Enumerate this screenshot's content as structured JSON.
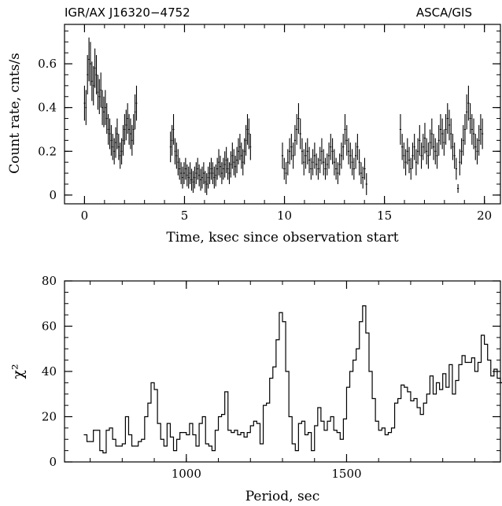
{
  "header": {
    "left": "IGR/AX J16320−4752",
    "right": "ASCA/GIS"
  },
  "chart_data": [
    {
      "type": "scatter",
      "xlabel": "Time, ksec since observation start",
      "ylabel": "Count rate, cnts/s",
      "xlim": [
        -1.0,
        20.8
      ],
      "ylim": [
        -0.04,
        0.78
      ],
      "x_ticks": [
        0,
        5,
        10,
        15,
        20
      ],
      "y_ticks": [
        0,
        0.2,
        0.4,
        0.6
      ],
      "x_tick_labels": [
        "0",
        "5",
        "10",
        "15",
        "20"
      ],
      "y_tick_labels": [
        "0",
        "0.2",
        "0.4",
        "0.6"
      ],
      "segments": [
        {
          "start": 0.0,
          "end": 2.6,
          "values": [
            0.42,
            0.4,
            0.55,
            0.62,
            0.6,
            0.52,
            0.5,
            0.58,
            0.55,
            0.47,
            0.45,
            0.48,
            0.4,
            0.38,
            0.4,
            0.35,
            0.3,
            0.28,
            0.25,
            0.22,
            0.2,
            0.24,
            0.28,
            0.22,
            0.18,
            0.2,
            0.25,
            0.3,
            0.32,
            0.35,
            0.3,
            0.28,
            0.25,
            0.3,
            0.38,
            0.42
          ],
          "errors": [
            0.08,
            0.08,
            0.09,
            0.1,
            0.1,
            0.09,
            0.09,
            0.09,
            0.09,
            0.08,
            0.08,
            0.08,
            0.08,
            0.07,
            0.08,
            0.07,
            0.07,
            0.07,
            0.07,
            0.06,
            0.06,
            0.07,
            0.07,
            0.06,
            0.06,
            0.06,
            0.07,
            0.07,
            0.07,
            0.07,
            0.07,
            0.07,
            0.07,
            0.07,
            0.08,
            0.08
          ]
        },
        {
          "start": 4.3,
          "end": 8.3,
          "values": [
            0.22,
            0.25,
            0.3,
            0.2,
            0.18,
            0.15,
            0.12,
            0.1,
            0.08,
            0.1,
            0.12,
            0.09,
            0.08,
            0.1,
            0.07,
            0.06,
            0.08,
            0.1,
            0.12,
            0.09,
            0.07,
            0.08,
            0.1,
            0.06,
            0.05,
            0.08,
            0.1,
            0.12,
            0.1,
            0.08,
            0.09,
            0.12,
            0.15,
            0.13,
            0.1,
            0.12,
            0.14,
            0.16,
            0.12,
            0.1,
            0.14,
            0.18,
            0.15,
            0.13,
            0.16,
            0.2,
            0.22,
            0.18,
            0.15,
            0.2,
            0.25,
            0.3,
            0.28,
            0.22
          ],
          "errors": [
            0.07,
            0.07,
            0.07,
            0.06,
            0.06,
            0.06,
            0.05,
            0.05,
            0.05,
            0.05,
            0.05,
            0.05,
            0.05,
            0.05,
            0.05,
            0.05,
            0.05,
            0.05,
            0.05,
            0.05,
            0.05,
            0.05,
            0.05,
            0.05,
            0.05,
            0.05,
            0.05,
            0.05,
            0.05,
            0.05,
            0.05,
            0.05,
            0.06,
            0.05,
            0.05,
            0.05,
            0.06,
            0.06,
            0.05,
            0.05,
            0.06,
            0.06,
            0.06,
            0.05,
            0.06,
            0.06,
            0.06,
            0.06,
            0.06,
            0.06,
            0.07,
            0.07,
            0.07,
            0.06
          ]
        },
        {
          "start": 9.9,
          "end": 14.1,
          "values": [
            0.18,
            0.12,
            0.1,
            0.15,
            0.2,
            0.22,
            0.18,
            0.25,
            0.3,
            0.35,
            0.28,
            0.2,
            0.15,
            0.18,
            0.2,
            0.16,
            0.12,
            0.15,
            0.18,
            0.14,
            0.12,
            0.16,
            0.2,
            0.15,
            0.12,
            0.14,
            0.18,
            0.22,
            0.2,
            0.15,
            0.12,
            0.1,
            0.14,
            0.18,
            0.22,
            0.3,
            0.25,
            0.2,
            0.18,
            0.15,
            0.12,
            0.18,
            0.22,
            0.15,
            0.1,
            0.08,
            0.12,
            0.05
          ],
          "errors": [
            0.06,
            0.05,
            0.05,
            0.06,
            0.06,
            0.06,
            0.06,
            0.07,
            0.07,
            0.07,
            0.07,
            0.06,
            0.06,
            0.06,
            0.06,
            0.06,
            0.05,
            0.06,
            0.06,
            0.05,
            0.05,
            0.06,
            0.06,
            0.06,
            0.05,
            0.05,
            0.06,
            0.06,
            0.06,
            0.06,
            0.05,
            0.05,
            0.05,
            0.06,
            0.06,
            0.07,
            0.07,
            0.06,
            0.06,
            0.06,
            0.05,
            0.06,
            0.06,
            0.06,
            0.05,
            0.05,
            0.05,
            0.05
          ]
        },
        {
          "start": 15.8,
          "end": 19.9,
          "values": [
            0.3,
            0.22,
            0.18,
            0.15,
            0.2,
            0.16,
            0.12,
            0.18,
            0.22,
            0.15,
            0.2,
            0.25,
            0.18,
            0.22,
            0.26,
            0.2,
            0.18,
            0.24,
            0.28,
            0.22,
            0.2,
            0.18,
            0.25,
            0.3,
            0.28,
            0.24,
            0.3,
            0.35,
            0.32,
            0.28,
            0.22,
            0.18,
            0.12,
            0.03,
            0.15,
            0.2,
            0.25,
            0.3,
            0.38,
            0.42,
            0.35,
            0.3,
            0.28,
            0.22,
            0.2,
            0.25,
            0.3,
            0.28
          ],
          "errors": [
            0.07,
            0.06,
            0.06,
            0.06,
            0.06,
            0.06,
            0.05,
            0.06,
            0.06,
            0.06,
            0.06,
            0.07,
            0.06,
            0.06,
            0.07,
            0.06,
            0.06,
            0.06,
            0.07,
            0.06,
            0.06,
            0.06,
            0.07,
            0.07,
            0.07,
            0.06,
            0.07,
            0.07,
            0.07,
            0.07,
            0.06,
            0.06,
            0.05,
            0.02,
            0.06,
            0.06,
            0.07,
            0.07,
            0.08,
            0.08,
            0.07,
            0.07,
            0.07,
            0.06,
            0.06,
            0.07,
            0.07,
            0.07
          ]
        }
      ]
    },
    {
      "type": "line",
      "step": true,
      "xlabel": "Period, sec",
      "ylabel": "χ²",
      "xlim": [
        620,
        1980
      ],
      "ylim": [
        0,
        80
      ],
      "x_ticks": [
        1000,
        1500
      ],
      "y_ticks": [
        0,
        20,
        40,
        60,
        80
      ],
      "x_tick_labels": [
        "1000",
        "1500"
      ],
      "y_tick_labels": [
        "0",
        "20",
        "40",
        "60",
        "80"
      ],
      "x_start": 680,
      "x_step": 10,
      "values": [
        12,
        9,
        9,
        14,
        14,
        5,
        4,
        14,
        15,
        10,
        7,
        7,
        8,
        20,
        12,
        7,
        7,
        9,
        10,
        20,
        26,
        35,
        32,
        17,
        10,
        7,
        17,
        11,
        5,
        10,
        13,
        13,
        12,
        17,
        12,
        7,
        17,
        20,
        8,
        7,
        5,
        14,
        20,
        21,
        31,
        14,
        13,
        14,
        12,
        13,
        11,
        13,
        16,
        18,
        17,
        8,
        25,
        26,
        37,
        42,
        54,
        66,
        62,
        40,
        20,
        8,
        5,
        17,
        18,
        12,
        13,
        5,
        16,
        24,
        18,
        14,
        18,
        20,
        14,
        13,
        10,
        19,
        33,
        40,
        45,
        50,
        62,
        69,
        57,
        40,
        28,
        18,
        14,
        15,
        12,
        13,
        15,
        26,
        28,
        34,
        33,
        31,
        27,
        28,
        24,
        21,
        26,
        30,
        38,
        30,
        35,
        32,
        39,
        33,
        43,
        30,
        36,
        43,
        47,
        44,
        44,
        46,
        40,
        44,
        56,
        52,
        45,
        38,
        41,
        37,
        35,
        36,
        35,
        36
      ]
    }
  ]
}
